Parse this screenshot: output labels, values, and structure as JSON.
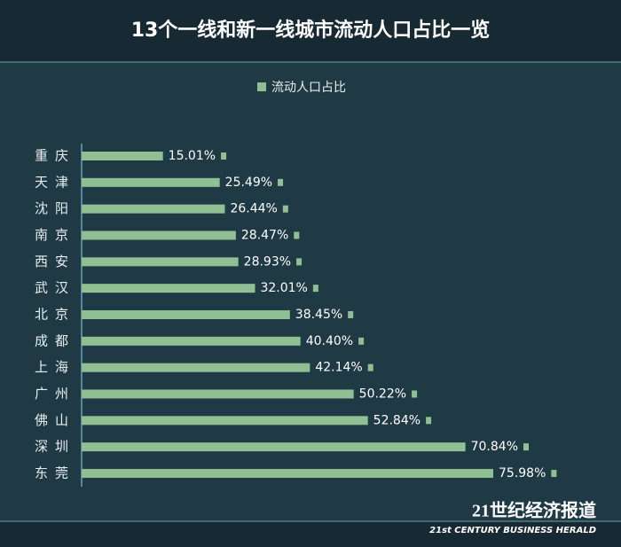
{
  "chart_data": {
    "type": "bar",
    "orientation": "horizontal",
    "title": "13个一线和新一线城市流动人口占比一览",
    "categories": [
      "重庆",
      "天津",
      "沈阳",
      "南京",
      "西安",
      "武汉",
      "北京",
      "成都",
      "上海",
      "广州",
      "佛山",
      "深圳",
      "东莞"
    ],
    "series": [
      {
        "name": "流动人口占比",
        "color": "#8fbf93",
        "values": [
          15.01,
          25.49,
          26.44,
          28.47,
          28.93,
          32.01,
          38.45,
          40.4,
          42.14,
          50.22,
          52.84,
          70.84,
          75.98
        ],
        "value_labels": [
          "15.01%",
          "25.49%",
          "26.44%",
          "28.47%",
          "28.93%",
          "32.01%",
          "38.45%",
          "40.40%",
          "42.14%",
          "50.22%",
          "52.84%",
          "70.84%",
          "75.98%"
        ]
      }
    ],
    "legend": "top",
    "source": "21世纪经济报道",
    "source_subtitle": "21st CENTURY BUSINESS HERALD"
  }
}
